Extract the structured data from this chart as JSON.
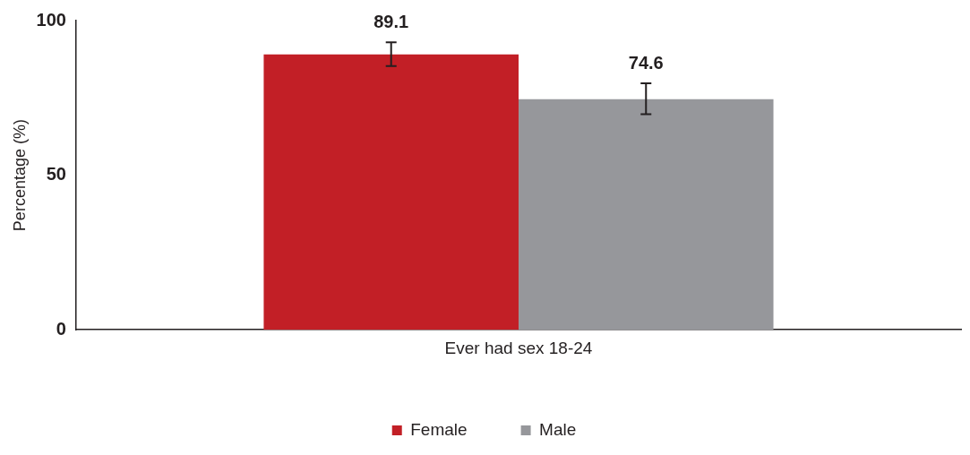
{
  "chart_data": {
    "type": "bar",
    "ylabel": "Percentage (%)",
    "categories": [
      "Ever had sex 18-24"
    ],
    "series": [
      {
        "name": "Female",
        "color": "#c21f26",
        "values": [
          89.1
        ],
        "errors": [
          [
            85.3,
            93.0
          ]
        ]
      },
      {
        "name": "Male",
        "color": "#96979b",
        "values": [
          74.6
        ],
        "errors": [
          [
            69.7,
            79.7
          ]
        ]
      }
    ],
    "ylim": [
      0,
      100
    ],
    "yticks": [
      0,
      50,
      100
    ],
    "grid": false,
    "legend": "bottom",
    "data_labels": true
  }
}
